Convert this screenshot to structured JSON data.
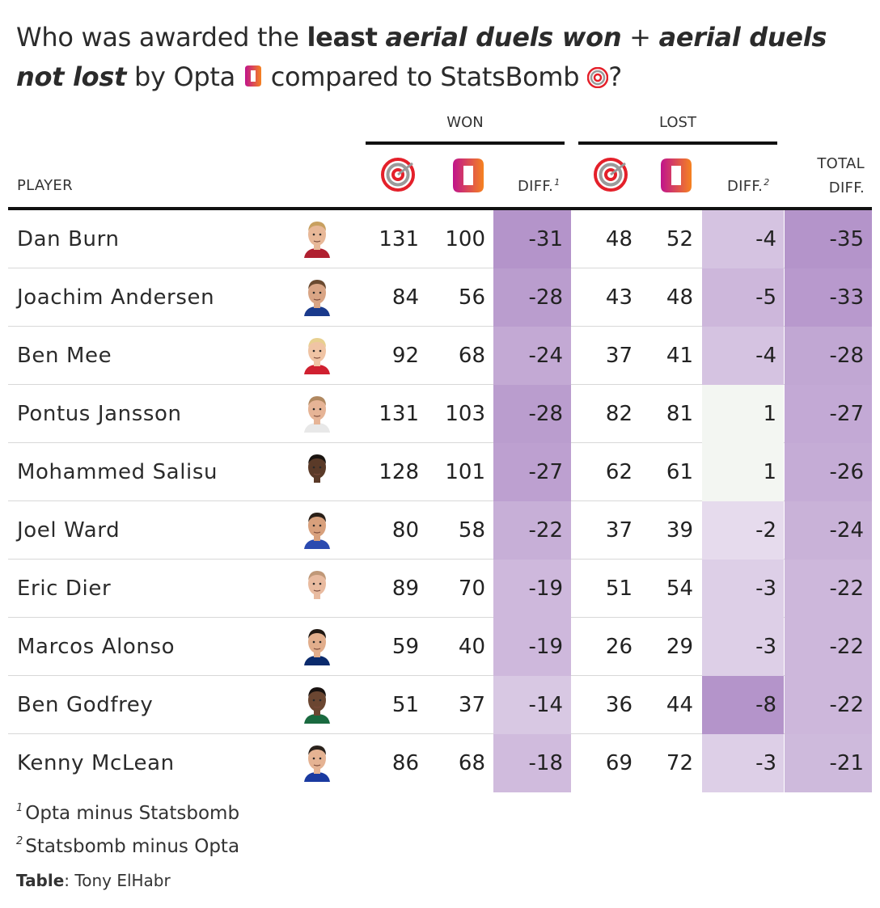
{
  "title": {
    "part1": "Who was awarded the ",
    "bold1": "least",
    "part2": " ",
    "bolditalic1": "aerial duels won",
    "part3": " + ",
    "bolditalic2": "aerial duels not lost",
    "part4": " by Opta ",
    "part5": " compared to StatsBomb ",
    "part6": "?"
  },
  "header": {
    "group_won": "WON",
    "group_lost": "LOST",
    "player": "PLAYER",
    "diff": "DIFF.",
    "diff1_mark": "1",
    "diff2_mark": "2",
    "total_line1": "TOTAL",
    "total_line2": "DIFF."
  },
  "icons": {
    "statsbomb": "statsbomb-logo-icon",
    "opta": "opta-logo-icon",
    "player": "player-headshot-icon"
  },
  "colors": {
    "statsbomb_red": "#e4202a",
    "statsbomb_gray": "#9a9a9a",
    "opta_magenta": "#c0148c",
    "opta_orange": "#f58220",
    "diff_purple_strong": "#b89bcc",
    "diff_green_light": "#f3f6f2"
  },
  "chart_data": {
    "type": "table",
    "title": "Who was awarded the least aerial duels won + aerial duels not lost by Opta compared to StatsBomb?",
    "columns": [
      "PLAYER",
      "WON StatsBomb",
      "WON Opta",
      "WON DIFF.",
      "LOST StatsBomb",
      "LOST Opta",
      "LOST DIFF.",
      "TOTAL DIFF."
    ],
    "rows": [
      {
        "player": "Dan Burn",
        "won_sb": 131,
        "won_opta": 100,
        "won_diff": -31,
        "lost_sb": 48,
        "lost_opta": 52,
        "lost_diff": -4,
        "total_diff": -35
      },
      {
        "player": "Joachim Andersen",
        "won_sb": 84,
        "won_opta": 56,
        "won_diff": -28,
        "lost_sb": 43,
        "lost_opta": 48,
        "lost_diff": -5,
        "total_diff": -33
      },
      {
        "player": "Ben Mee",
        "won_sb": 92,
        "won_opta": 68,
        "won_diff": -24,
        "lost_sb": 37,
        "lost_opta": 41,
        "lost_diff": -4,
        "total_diff": -28
      },
      {
        "player": "Pontus Jansson",
        "won_sb": 131,
        "won_opta": 103,
        "won_diff": -28,
        "lost_sb": 82,
        "lost_opta": 81,
        "lost_diff": 1,
        "total_diff": -27
      },
      {
        "player": "Mohammed Salisu",
        "won_sb": 128,
        "won_opta": 101,
        "won_diff": -27,
        "lost_sb": 62,
        "lost_opta": 61,
        "lost_diff": 1,
        "total_diff": -26
      },
      {
        "player": "Joel Ward",
        "won_sb": 80,
        "won_opta": 58,
        "won_diff": -22,
        "lost_sb": 37,
        "lost_opta": 39,
        "lost_diff": -2,
        "total_diff": -24
      },
      {
        "player": "Eric Dier",
        "won_sb": 89,
        "won_opta": 70,
        "won_diff": -19,
        "lost_sb": 51,
        "lost_opta": 54,
        "lost_diff": -3,
        "total_diff": -22
      },
      {
        "player": "Marcos Alonso",
        "won_sb": 59,
        "won_opta": 40,
        "won_diff": -19,
        "lost_sb": 26,
        "lost_opta": 29,
        "lost_diff": -3,
        "total_diff": -22
      },
      {
        "player": "Ben Godfrey",
        "won_sb": 51,
        "won_opta": 37,
        "won_diff": -14,
        "lost_sb": 36,
        "lost_opta": 44,
        "lost_diff": -8,
        "total_diff": -22
      },
      {
        "player": "Kenny McLean",
        "won_sb": 86,
        "won_opta": 68,
        "won_diff": -18,
        "lost_sb": 69,
        "lost_opta": 72,
        "lost_diff": -3,
        "total_diff": -21
      }
    ]
  },
  "footnotes": {
    "fn1_mark": "1",
    "fn1_text": "Opta minus Statsbomb",
    "fn2_mark": "2",
    "fn2_text": "Statsbomb minus Opta"
  },
  "credit": {
    "label": "Table",
    "text": ": Tony ElHabr"
  }
}
